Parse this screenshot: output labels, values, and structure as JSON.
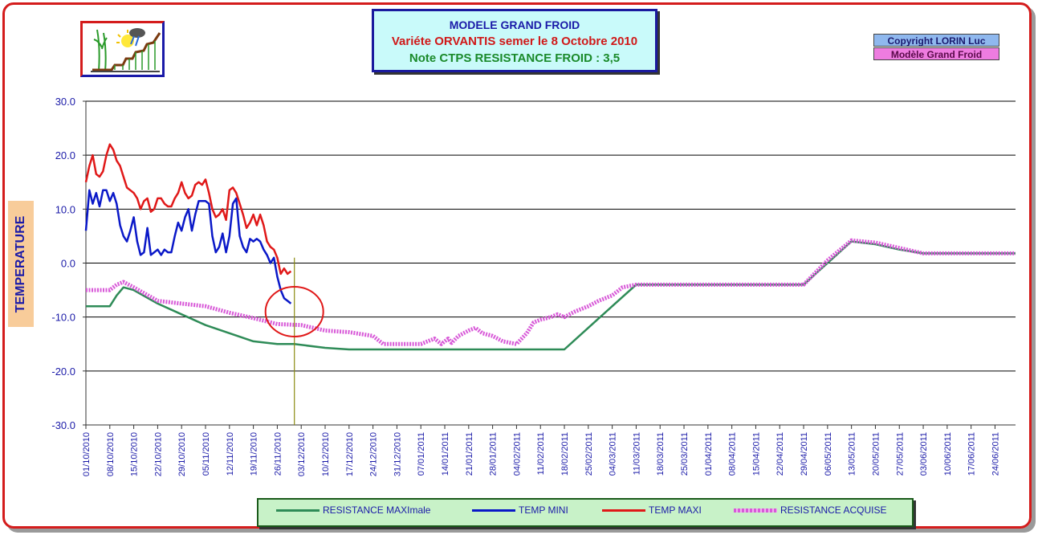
{
  "header": {
    "title": "MODELE GRAND FROID",
    "variety": "Variéte ORVANTIS  semer le 8 Octobre 2010",
    "note": "Note CTPS RESISTANCE FROID : 3,5",
    "copyright": "Copyright LORIN Luc",
    "model_label": "Modèle Grand Froid"
  },
  "colors": {
    "resistance_max": "#2e8b57",
    "temp_mini": "#0a18c8",
    "temp_maxi": "#e01818",
    "resistance_acquise": "#d85ad8",
    "axis_text": "#1a1aa8"
  },
  "chart_data": {
    "type": "line",
    "ylabel": "TEMPERATURE",
    "ylim": [
      -30,
      30
    ],
    "yticks": [
      "30.0",
      "20.0",
      "10.0",
      "0.0",
      "-10.0",
      "-20.0",
      "-30.0"
    ],
    "ytick_values": [
      30,
      20,
      10,
      0,
      -10,
      -20,
      -30
    ],
    "grid": true,
    "xstart": "01/10/2010",
    "xend": "30/06/2011",
    "xticks": [
      "01/10/2010",
      "08/10/2010",
      "15/10/2010",
      "22/10/2010",
      "29/10/2010",
      "05/11/2010",
      "12/11/2010",
      "19/11/2010",
      "26/11/2010",
      "03/12/2010",
      "10/12/2010",
      "17/12/2010",
      "24/12/2010",
      "31/12/2010",
      "07/01/2011",
      "14/01/2011",
      "21/01/2011",
      "28/01/2011",
      "04/02/2011",
      "11/02/2011",
      "18/02/2011",
      "25/02/2011",
      "04/03/2011",
      "11/03/2011",
      "18/03/2011",
      "25/03/2011",
      "01/04/2011",
      "08/04/2011",
      "15/04/2011",
      "22/04/2011",
      "29/04/2011",
      "06/05/2011",
      "13/05/2011",
      "20/05/2011",
      "27/05/2011",
      "03/06/2011",
      "10/06/2011",
      "17/06/2011",
      "24/06/2011"
    ],
    "marker_date": "01/12/2010",
    "legend": [
      "RESISTANCE MAXImale",
      "TEMP MINI",
      "TEMP MAXI",
      "RESISTANCE ACQUISE"
    ],
    "series": [
      {
        "name": "RESISTANCE MAXImale",
        "points": [
          [
            "01/10/2010",
            -8
          ],
          [
            "08/10/2010",
            -8
          ],
          [
            "10/10/2010",
            -6
          ],
          [
            "12/10/2010",
            -4.5
          ],
          [
            "15/10/2010",
            -5
          ],
          [
            "22/10/2010",
            -7.5
          ],
          [
            "29/10/2010",
            -9.5
          ],
          [
            "05/11/2010",
            -11.5
          ],
          [
            "12/11/2010",
            -13
          ],
          [
            "19/11/2010",
            -14.5
          ],
          [
            "26/11/2010",
            -15
          ],
          [
            "01/12/2010",
            -15
          ],
          [
            "10/12/2010",
            -15.7
          ],
          [
            "17/12/2010",
            -16
          ],
          [
            "24/12/2010",
            -16
          ],
          [
            "18/02/2011",
            -16
          ],
          [
            "25/02/2011",
            -12
          ],
          [
            "04/03/2011",
            -8
          ],
          [
            "11/03/2011",
            -4
          ],
          [
            "29/04/2011",
            -4
          ],
          [
            "06/05/2011",
            0
          ],
          [
            "13/05/2011",
            4
          ],
          [
            "20/05/2011",
            3.5
          ],
          [
            "27/05/2011",
            2.5
          ],
          [
            "03/06/2011",
            1.8
          ],
          [
            "30/06/2011",
            1.8
          ]
        ]
      },
      {
        "name": "TEMP MINI",
        "points": [
          [
            "01/10/2010",
            6
          ],
          [
            "02/10/2010",
            13.5
          ],
          [
            "03/10/2010",
            11
          ],
          [
            "04/10/2010",
            13
          ],
          [
            "05/10/2010",
            10.5
          ],
          [
            "06/10/2010",
            13.5
          ],
          [
            "07/10/2010",
            13.5
          ],
          [
            "08/10/2010",
            11.5
          ],
          [
            "09/10/2010",
            13
          ],
          [
            "10/10/2010",
            11
          ],
          [
            "11/10/2010",
            7
          ],
          [
            "12/10/2010",
            5
          ],
          [
            "13/10/2010",
            4
          ],
          [
            "14/10/2010",
            6
          ],
          [
            "15/10/2010",
            8.5
          ],
          [
            "16/10/2010",
            4
          ],
          [
            "17/10/2010",
            1.5
          ],
          [
            "18/10/2010",
            2
          ],
          [
            "19/10/2010",
            6.5
          ],
          [
            "20/10/2010",
            1.5
          ],
          [
            "21/10/2010",
            2
          ],
          [
            "22/10/2010",
            2.5
          ],
          [
            "23/10/2010",
            1.5
          ],
          [
            "24/10/2010",
            2.5
          ],
          [
            "25/10/2010",
            2
          ],
          [
            "26/10/2010",
            2
          ],
          [
            "27/10/2010",
            5
          ],
          [
            "28/10/2010",
            7.5
          ],
          [
            "29/10/2010",
            6
          ],
          [
            "30/10/2010",
            8.5
          ],
          [
            "31/10/2010",
            10
          ],
          [
            "01/11/2010",
            6
          ],
          [
            "02/11/2010",
            9
          ],
          [
            "03/11/2010",
            11.5
          ],
          [
            "04/11/2010",
            11.5
          ],
          [
            "05/11/2010",
            11.5
          ],
          [
            "06/11/2010",
            11
          ],
          [
            "07/11/2010",
            5
          ],
          [
            "08/11/2010",
            2
          ],
          [
            "09/11/2010",
            3
          ],
          [
            "10/11/2010",
            5.5
          ],
          [
            "11/11/2010",
            2
          ],
          [
            "12/11/2010",
            5
          ],
          [
            "13/11/2010",
            11
          ],
          [
            "14/11/2010",
            12
          ],
          [
            "15/11/2010",
            5
          ],
          [
            "16/11/2010",
            3
          ],
          [
            "17/11/2010",
            2
          ],
          [
            "18/11/2010",
            4.5
          ],
          [
            "19/11/2010",
            4
          ],
          [
            "20/11/2010",
            4.5
          ],
          [
            "21/11/2010",
            4
          ],
          [
            "22/11/2010",
            2.5
          ],
          [
            "23/11/2010",
            1.5
          ],
          [
            "24/11/2010",
            0
          ],
          [
            "25/11/2010",
            1
          ],
          [
            "26/11/2010",
            -2.5
          ],
          [
            "27/11/2010",
            -5
          ],
          [
            "28/11/2010",
            -6.5
          ],
          [
            "29/11/2010",
            -7
          ],
          [
            "30/11/2010",
            -7.5
          ]
        ]
      },
      {
        "name": "TEMP MAXI",
        "points": [
          [
            "01/10/2010",
            15
          ],
          [
            "02/10/2010",
            18
          ],
          [
            "03/10/2010",
            20
          ],
          [
            "04/10/2010",
            16.5
          ],
          [
            "05/10/2010",
            16
          ],
          [
            "06/10/2010",
            17
          ],
          [
            "07/10/2010",
            20
          ],
          [
            "08/10/2010",
            22
          ],
          [
            "09/10/2010",
            21
          ],
          [
            "10/10/2010",
            19
          ],
          [
            "11/10/2010",
            18
          ],
          [
            "12/10/2010",
            16
          ],
          [
            "13/10/2010",
            14
          ],
          [
            "14/10/2010",
            13.5
          ],
          [
            "15/10/2010",
            13
          ],
          [
            "16/10/2010",
            12
          ],
          [
            "17/10/2010",
            10
          ],
          [
            "18/10/2010",
            11.5
          ],
          [
            "19/10/2010",
            12
          ],
          [
            "20/10/2010",
            9.5
          ],
          [
            "21/10/2010",
            10
          ],
          [
            "22/10/2010",
            12
          ],
          [
            "23/10/2010",
            12
          ],
          [
            "24/10/2010",
            11
          ],
          [
            "25/10/2010",
            10.5
          ],
          [
            "26/10/2010",
            10.5
          ],
          [
            "27/10/2010",
            12
          ],
          [
            "28/10/2010",
            13
          ],
          [
            "29/10/2010",
            15
          ],
          [
            "30/10/2010",
            13
          ],
          [
            "31/10/2010",
            12
          ],
          [
            "01/11/2010",
            12.5
          ],
          [
            "02/11/2010",
            14.5
          ],
          [
            "03/11/2010",
            15
          ],
          [
            "04/11/2010",
            14.5
          ],
          [
            "05/11/2010",
            15.5
          ],
          [
            "06/11/2010",
            13
          ],
          [
            "07/11/2010",
            10
          ],
          [
            "08/11/2010",
            8.5
          ],
          [
            "09/11/2010",
            9
          ],
          [
            "10/11/2010",
            10
          ],
          [
            "11/11/2010",
            8
          ],
          [
            "12/11/2010",
            13.5
          ],
          [
            "13/11/2010",
            14
          ],
          [
            "14/11/2010",
            13
          ],
          [
            "15/11/2010",
            11
          ],
          [
            "16/11/2010",
            9
          ],
          [
            "17/11/2010",
            6.5
          ],
          [
            "18/11/2010",
            7.5
          ],
          [
            "19/11/2010",
            9
          ],
          [
            "20/11/2010",
            7
          ],
          [
            "21/11/2010",
            9
          ],
          [
            "22/11/2010",
            7
          ],
          [
            "23/11/2010",
            4
          ],
          [
            "24/11/2010",
            3
          ],
          [
            "25/11/2010",
            2.5
          ],
          [
            "26/11/2010",
            1
          ],
          [
            "27/11/2010",
            -2
          ],
          [
            "28/11/2010",
            -1
          ],
          [
            "29/11/2010",
            -2
          ],
          [
            "30/11/2010",
            -1.5
          ]
        ]
      },
      {
        "name": "RESISTANCE ACQUISE",
        "points": [
          [
            "01/10/2010",
            -5
          ],
          [
            "08/10/2010",
            -5
          ],
          [
            "10/10/2010",
            -4
          ],
          [
            "12/10/2010",
            -3.5
          ],
          [
            "15/10/2010",
            -4.5
          ],
          [
            "22/10/2010",
            -7
          ],
          [
            "29/10/2010",
            -7.5
          ],
          [
            "05/11/2010",
            -8
          ],
          [
            "12/11/2010",
            -9.2
          ],
          [
            "19/11/2010",
            -10.2
          ],
          [
            "26/11/2010",
            -11.3
          ],
          [
            "03/12/2010",
            -11.5
          ],
          [
            "10/12/2010",
            -12.5
          ],
          [
            "17/12/2010",
            -12.8
          ],
          [
            "24/12/2010",
            -13.5
          ],
          [
            "27/12/2010",
            -15
          ],
          [
            "31/12/2010",
            -15
          ],
          [
            "07/01/2011",
            -15
          ],
          [
            "09/01/2011",
            -14.5
          ],
          [
            "11/01/2011",
            -14
          ],
          [
            "13/01/2011",
            -15
          ],
          [
            "15/01/2011",
            -14
          ],
          [
            "16/01/2011",
            -14.8
          ],
          [
            "18/01/2011",
            -13.5
          ],
          [
            "21/01/2011",
            -12.5
          ],
          [
            "23/01/2011",
            -12
          ],
          [
            "25/01/2011",
            -13
          ],
          [
            "28/01/2011",
            -13.5
          ],
          [
            "31/01/2011",
            -14.5
          ],
          [
            "04/02/2011",
            -15
          ],
          [
            "07/02/2011",
            -13
          ],
          [
            "09/02/2011",
            -11
          ],
          [
            "11/02/2011",
            -10.5
          ],
          [
            "14/02/2011",
            -10
          ],
          [
            "16/02/2011",
            -9.5
          ],
          [
            "18/02/2011",
            -10
          ],
          [
            "21/02/2011",
            -9
          ],
          [
            "25/02/2011",
            -8
          ],
          [
            "28/02/2011",
            -7
          ],
          [
            "04/03/2011",
            -6
          ],
          [
            "07/03/2011",
            -4.5
          ],
          [
            "11/03/2011",
            -4
          ],
          [
            "29/04/2011",
            -4
          ],
          [
            "06/05/2011",
            0.5
          ],
          [
            "13/05/2011",
            4.2
          ],
          [
            "20/05/2011",
            3.8
          ],
          [
            "27/05/2011",
            2.8
          ],
          [
            "03/06/2011",
            1.8
          ],
          [
            "30/06/2011",
            1.8
          ]
        ]
      }
    ]
  }
}
